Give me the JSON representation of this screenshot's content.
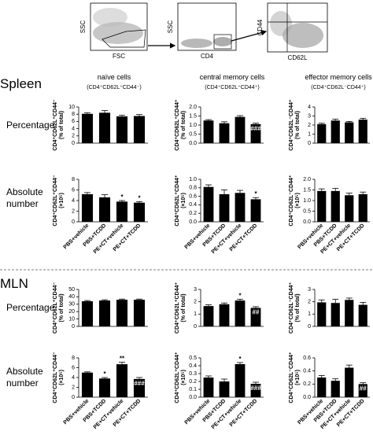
{
  "flow": {
    "plot1_y": "SSC",
    "plot1_x": "FSC",
    "plot2_y": "SSC",
    "plot2_x": "CD4",
    "plot3_y": "CD44",
    "plot3_x": "CD62L"
  },
  "sections": [
    {
      "title": "Spleen",
      "row_percentage": "Percentage",
      "row_absolute": [
        "Absolute",
        "number"
      ]
    },
    {
      "title": "MLN",
      "row_percentage": "Percentage",
      "row_absolute": [
        "Absolute",
        "number"
      ]
    }
  ],
  "column_headers": [
    {
      "title": "naïve cells",
      "subtitle": "(CD4⁺CD62L⁺CD44⁻)"
    },
    {
      "title": "central memory cells",
      "subtitle": "(CD4⁺CD62L⁺CD44⁺)"
    },
    {
      "title": "effector memory cells",
      "subtitle": "(CD4⁺CD62L⁻CD44⁺)"
    }
  ],
  "chart_data": [
    {
      "type": "bar",
      "y_label": [
        "CD4⁺CD62L⁺CD44⁻",
        "(% of total)"
      ],
      "values": [
        8.1,
        8.4,
        7.4,
        7.5
      ],
      "errors": [
        0.3,
        0.6,
        0.3,
        0.4
      ],
      "annotations": [
        null,
        null,
        null,
        null
      ],
      "color": "#000000",
      "ylim": [
        0,
        10
      ],
      "yticks": [
        0,
        2,
        4,
        6,
        8,
        10
      ]
    },
    {
      "type": "bar",
      "y_label": [
        "CD4⁺CD62L⁺CD44⁺",
        "(% of total)"
      ],
      "values": [
        1.25,
        1.1,
        1.45,
        1.05
      ],
      "errors": [
        0.05,
        0.08,
        0.07,
        0.05
      ],
      "annotations": [
        null,
        null,
        null,
        "###"
      ],
      "color": "#000000",
      "ylim": [
        0,
        2
      ],
      "yticks": [
        {
          "value": 0,
          "label": "0.0"
        },
        0.5,
        {
          "value": 1,
          "label": "1.0"
        },
        1.5,
        {
          "value": 2,
          "label": "2.0"
        }
      ]
    },
    {
      "type": "bar",
      "y_label": [
        "CD4⁺CD62L⁻CD44⁺",
        "(% of total)"
      ],
      "values": [
        2.1,
        2.5,
        2.3,
        2.6
      ],
      "errors": [
        0.1,
        0.15,
        0.1,
        0.15
      ],
      "annotations": [
        null,
        null,
        null,
        null
      ],
      "color": "#000000",
      "ylim": [
        0,
        4
      ],
      "yticks": [
        0,
        1,
        2,
        3,
        4
      ]
    },
    {
      "type": "bar",
      "y_label": [
        "CD4⁺CD62L⁺CD44⁻",
        "(×10⁵)"
      ],
      "categories": [
        "PBS+vehicle",
        "PBS+TCDD",
        "PE+CT+vehicle",
        "PE+CT+TCDD"
      ],
      "values": [
        5.2,
        4.6,
        3.8,
        3.6
      ],
      "errors": [
        0.3,
        0.5,
        0.2,
        0.2
      ],
      "annotations": [
        null,
        null,
        "*",
        "*"
      ],
      "color": "#000000",
      "ylim": [
        0,
        8
      ],
      "yticks": [
        0,
        2,
        4,
        6,
        8
      ]
    },
    {
      "type": "bar",
      "y_label": [
        "CD4⁺CD62L⁺CD44⁺",
        "(×10⁵)"
      ],
      "categories": [
        "PBS+vehicle",
        "PBS+TCDD",
        "PE+CT+vehicle",
        "PE+CT+TCDD"
      ],
      "values": [
        0.82,
        0.65,
        0.68,
        0.53
      ],
      "errors": [
        0.05,
        0.1,
        0.06,
        0.04
      ],
      "annotations": [
        null,
        null,
        null,
        "*"
      ],
      "color": "#000000",
      "ylim": [
        0,
        1
      ],
      "yticks": [
        {
          "value": 0,
          "label": "0.0"
        },
        0.2,
        0.4,
        0.6,
        0.8,
        {
          "value": 1,
          "label": "1.0"
        }
      ]
    },
    {
      "type": "bar",
      "y_label": [
        "CD4⁺CD62L⁻CD44⁺",
        "(×10⁵)"
      ],
      "categories": [
        "PBS+vehicle",
        "PBS+TCDD",
        "PE+CT+vehicle",
        "PE+CT+TCDD"
      ],
      "values": [
        1.45,
        1.45,
        1.25,
        1.3
      ],
      "errors": [
        0.1,
        0.12,
        0.1,
        0.1
      ],
      "annotations": [
        null,
        null,
        null,
        null
      ],
      "color": "#000000",
      "ylim": [
        0,
        2
      ],
      "yticks": [
        {
          "value": 0,
          "label": "0.0"
        },
        0.5,
        {
          "value": 1,
          "label": "1.0"
        },
        1.5,
        {
          "value": 2,
          "label": "2.0"
        }
      ]
    },
    {
      "type": "bar",
      "y_label": [
        "CD4⁺CD62L⁺CD44⁻",
        "(% of total)"
      ],
      "values": [
        34,
        35,
        36,
        36
      ],
      "errors": [
        1,
        1,
        1,
        1
      ],
      "annotations": [
        null,
        null,
        null,
        null
      ],
      "color": "#000000",
      "ylim": [
        0,
        50
      ],
      "yticks": [
        0,
        10,
        20,
        30,
        40,
        50
      ]
    },
    {
      "type": "bar",
      "y_label": [
        "CD4⁺CD62L⁺CD44⁺",
        "(% of total)"
      ],
      "values": [
        1.65,
        1.8,
        2.1,
        1.5
      ],
      "errors": [
        0.1,
        0.1,
        0.1,
        0.1
      ],
      "annotations": [
        null,
        null,
        "*",
        "##"
      ],
      "color": "#000000",
      "ylim": [
        0,
        3
      ],
      "yticks": [
        0,
        1,
        2,
        3
      ]
    },
    {
      "type": "bar",
      "y_label": [
        "CD4⁺CD62L⁻CD44⁺",
        "(% of total)"
      ],
      "values": [
        1.95,
        1.9,
        2.15,
        1.75
      ],
      "errors": [
        0.2,
        0.3,
        0.15,
        0.2
      ],
      "annotations": [
        null,
        null,
        null,
        null
      ],
      "color": "#000000",
      "ylim": [
        0,
        3
      ],
      "yticks": [
        0,
        1,
        2,
        3
      ]
    },
    {
      "type": "bar",
      "y_label": [
        "CD4⁺CD62L⁺CD44⁻",
        "(×10⁵)"
      ],
      "categories": [
        "PBS+vehicle",
        "PBS+TCDD",
        "PE+CT+vehicle",
        "PE+CT+TCDD"
      ],
      "values": [
        5.0,
        3.8,
        6.7,
        3.7
      ],
      "errors": [
        0.15,
        0.2,
        0.4,
        0.3
      ],
      "annotations": [
        null,
        "*",
        "**",
        "###"
      ],
      "color": "#000000",
      "ylim": [
        0,
        8
      ],
      "yticks": [
        0,
        2,
        4,
        6,
        8
      ]
    },
    {
      "type": "bar",
      "y_label": [
        "CD4⁺CD62L⁺CD44⁺",
        "(×10⁵)"
      ],
      "categories": [
        "PBS+vehicle",
        "PBS+TCDD",
        "PE+CT+vehicle",
        "PE+CT+TCDD"
      ],
      "values": [
        0.25,
        0.2,
        0.42,
        0.17
      ],
      "errors": [
        0.02,
        0.03,
        0.02,
        0.02
      ],
      "annotations": [
        null,
        null,
        "*",
        "###"
      ],
      "color": "#000000",
      "ylim": [
        0,
        0.5
      ],
      "yticks": [
        {
          "value": 0,
          "label": "0.0"
        },
        0.1,
        0.2,
        0.3,
        0.4,
        0.5
      ]
    },
    {
      "type": "bar",
      "y_label": [
        "CD4⁺CD62L⁻CD44⁺",
        "(×10⁵)"
      ],
      "categories": [
        "PBS+vehicle",
        "PBS+TCDD",
        "PE+CT+vehicle",
        "PE+CT+TCDD"
      ],
      "values": [
        0.3,
        0.25,
        0.45,
        0.2
      ],
      "errors": [
        0.03,
        0.03,
        0.04,
        0.02
      ],
      "annotations": [
        null,
        null,
        null,
        "##"
      ],
      "color": "#000000",
      "ylim": [
        0,
        0.6
      ],
      "yticks": [
        {
          "value": 0,
          "label": "0.0"
        },
        0.2,
        0.4,
        0.6
      ]
    }
  ]
}
